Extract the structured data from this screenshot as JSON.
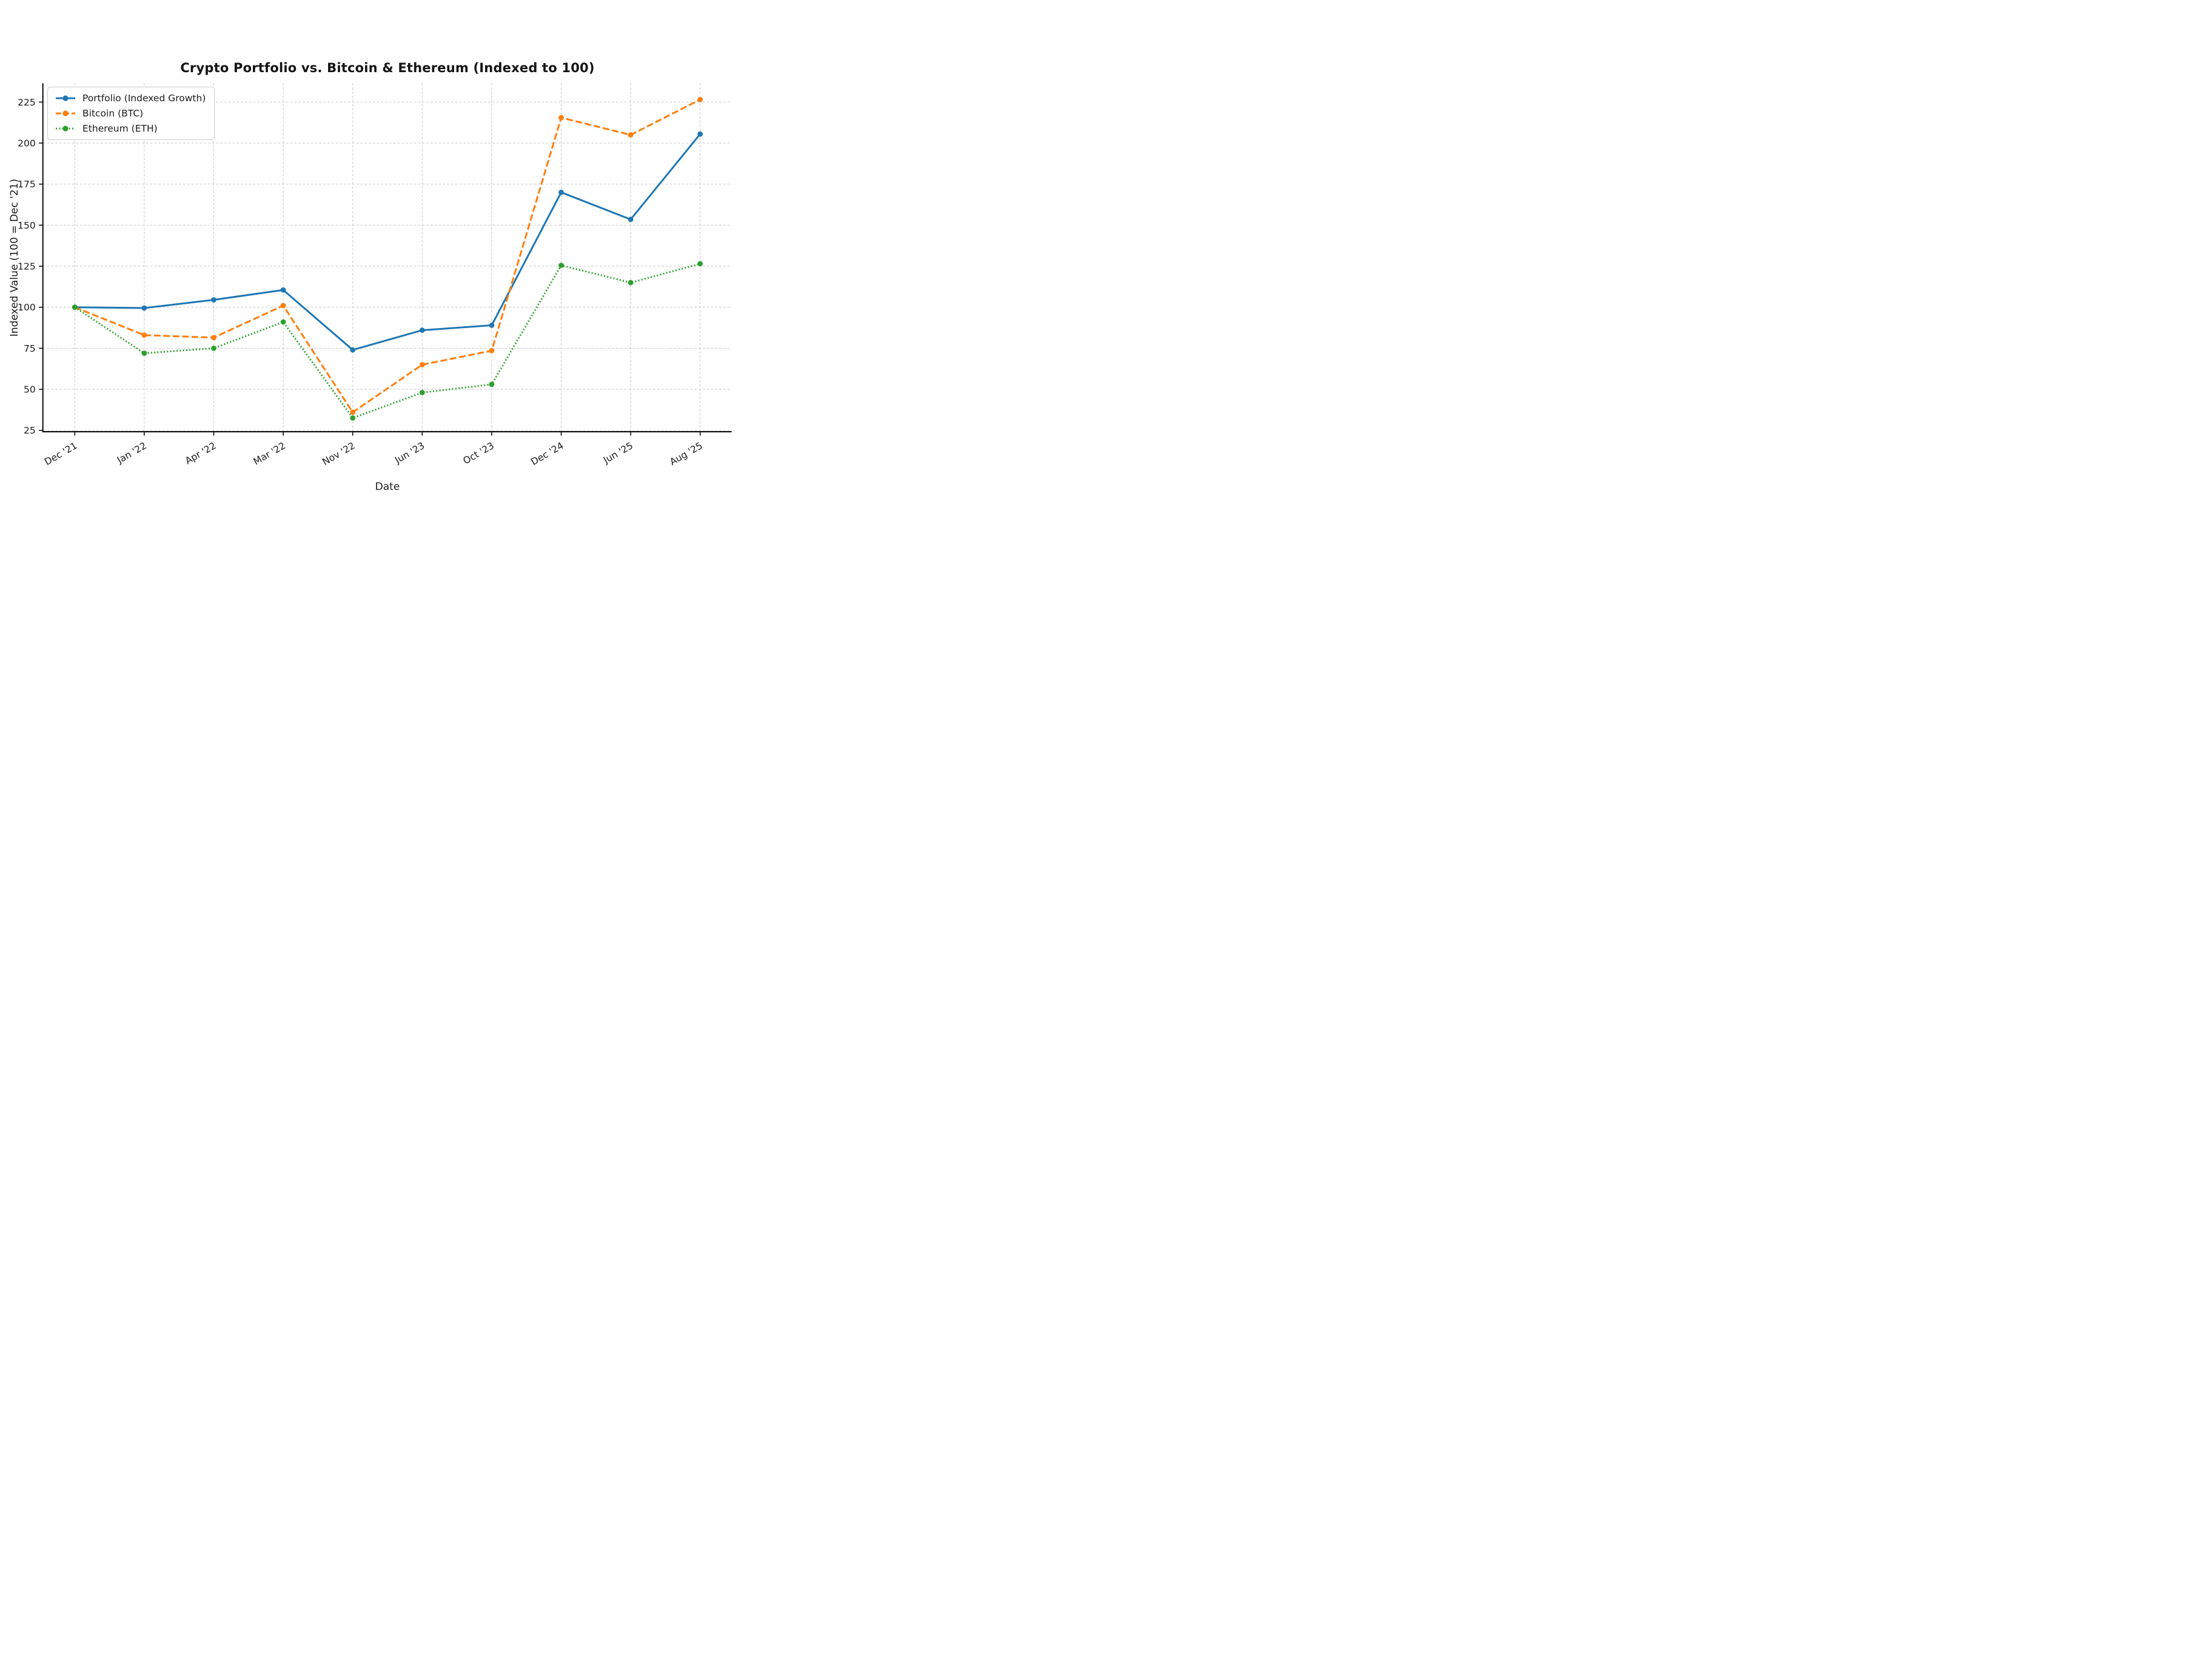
{
  "chart_data": {
    "type": "line",
    "title": "Crypto Portfolio vs. Bitcoin & Ethereum (Indexed to 100)",
    "xlabel": "Date",
    "ylabel": "Indexed Value (100 = Dec '21)",
    "categories": [
      "Dec '21",
      "Jan '22",
      "Apr '22",
      "Mar '22",
      "Nov '22",
      "Jun '23",
      "Oct '23",
      "Dec '24",
      "Jun '25",
      "Aug '25"
    ],
    "series": [
      {
        "name": "Portfolio (Indexed Growth)",
        "color": "#1f77b4",
        "line_style": "solid",
        "marker": "circle",
        "values": [
          100,
          99.5,
          104.5,
          110.5,
          74,
          86,
          89,
          170,
          153.5,
          205.5
        ]
      },
      {
        "name": "Bitcoin (BTC)",
        "color": "#ff7f0e",
        "line_style": "dashed",
        "marker": "circle",
        "values": [
          100,
          83,
          81.5,
          101,
          36,
          65,
          73.5,
          215.5,
          205,
          226.5
        ]
      },
      {
        "name": "Ethereum (ETH)",
        "color": "#2ca02c",
        "line_style": "dotted",
        "marker": "circle",
        "values": [
          100,
          72,
          75,
          91,
          32.5,
          48,
          53,
          125.5,
          115,
          126.5
        ]
      }
    ],
    "y_ticks": [
      25,
      50,
      75,
      100,
      125,
      150,
      175,
      200,
      225
    ],
    "ylim": [
      24.15,
      236.45
    ],
    "grid": true,
    "gridline_color": "#c9c9c9",
    "spine_color": "#000000",
    "legend_position": "upper left",
    "x_tick_rotation_deg": 30
  }
}
